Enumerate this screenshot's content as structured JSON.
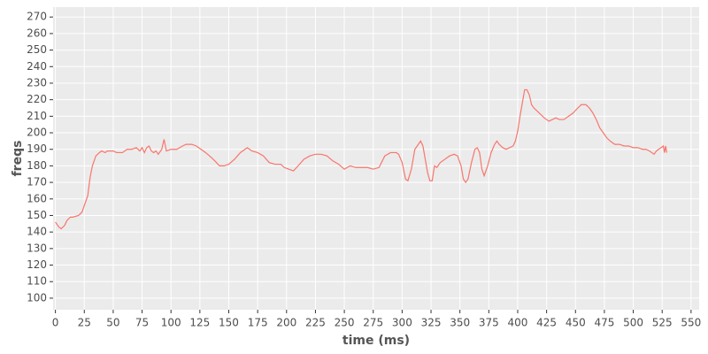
{
  "chart_data": {
    "type": "line",
    "x_label": "time (ms)",
    "y_label": "freqs",
    "color": "#f8766d",
    "grid": true,
    "x": [
      0,
      3,
      5,
      8,
      10,
      13,
      15,
      20,
      23,
      25,
      28,
      30,
      32,
      35,
      38,
      40,
      43,
      45,
      50,
      53,
      58,
      62,
      66,
      70,
      73,
      75,
      77,
      79,
      81,
      83,
      85,
      87,
      89,
      92,
      94,
      96,
      100,
      105,
      110,
      113,
      118,
      122,
      126,
      130,
      135,
      138,
      142,
      146,
      150,
      155,
      160,
      164,
      166,
      170,
      175,
      180,
      185,
      190,
      195,
      198,
      202,
      206,
      210,
      215,
      220,
      225,
      230,
      235,
      240,
      245,
      250,
      255,
      260,
      265,
      270,
      275,
      280,
      285,
      290,
      295,
      297,
      300,
      303,
      305,
      308,
      311,
      314,
      316,
      318,
      320,
      322,
      324,
      326,
      328,
      330,
      333,
      337,
      341,
      345,
      348,
      351,
      353,
      355,
      357,
      360,
      363,
      365,
      367,
      369,
      371,
      374,
      377,
      380,
      382,
      384,
      387,
      390,
      393,
      396,
      398,
      400,
      402,
      404,
      406,
      408,
      410,
      412,
      414,
      417,
      420,
      423,
      427,
      430,
      433,
      436,
      440,
      444,
      448,
      452,
      455,
      459,
      462,
      465,
      468,
      471,
      474,
      477,
      480,
      484,
      488,
      492,
      496,
      500,
      504,
      508,
      511,
      514,
      518,
      520,
      522,
      524,
      526,
      527,
      528,
      529
    ],
    "values": [
      146,
      143,
      142,
      144,
      147,
      149,
      149,
      150,
      152,
      156,
      162,
      173,
      180,
      186,
      188,
      189,
      188,
      189,
      189,
      188,
      188,
      190,
      190,
      191,
      189,
      191,
      188,
      191,
      192,
      189,
      188,
      189,
      187,
      190,
      196,
      189,
      190,
      190,
      192,
      193,
      193,
      192,
      190,
      188,
      185,
      183,
      180,
      180,
      181,
      184,
      188,
      190,
      191,
      189,
      188,
      186,
      182,
      181,
      181,
      179,
      178,
      177,
      180,
      184,
      186,
      187,
      187,
      186,
      183,
      181,
      178,
      180,
      179,
      179,
      179,
      178,
      179,
      186,
      188,
      188,
      187,
      182,
      172,
      171,
      178,
      190,
      193,
      195,
      192,
      184,
      176,
      171,
      171,
      180,
      179,
      182,
      184,
      186,
      187,
      186,
      180,
      172,
      170,
      172,
      182,
      190,
      191,
      188,
      178,
      174,
      180,
      188,
      193,
      195,
      193,
      191,
      190,
      191,
      192,
      195,
      201,
      210,
      218,
      226,
      226,
      223,
      217,
      215,
      213,
      211,
      209,
      207,
      208,
      209,
      208,
      208,
      210,
      212,
      215,
      217,
      217,
      215,
      212,
      208,
      203,
      200,
      197,
      195,
      193,
      193,
      192,
      192,
      191,
      191,
      190,
      190,
      189,
      187,
      189,
      190,
      191,
      192,
      188,
      192,
      188
    ],
    "xlim": [
      -2,
      557
    ],
    "ylim": [
      93,
      276
    ],
    "xticks": [
      0,
      25,
      50,
      75,
      100,
      125,
      150,
      175,
      200,
      225,
      250,
      275,
      300,
      325,
      350,
      375,
      400,
      425,
      450,
      475,
      500,
      525,
      550
    ],
    "yticks": [
      100,
      110,
      120,
      130,
      140,
      150,
      160,
      170,
      180,
      190,
      200,
      210,
      220,
      230,
      240,
      250,
      260,
      270
    ]
  }
}
